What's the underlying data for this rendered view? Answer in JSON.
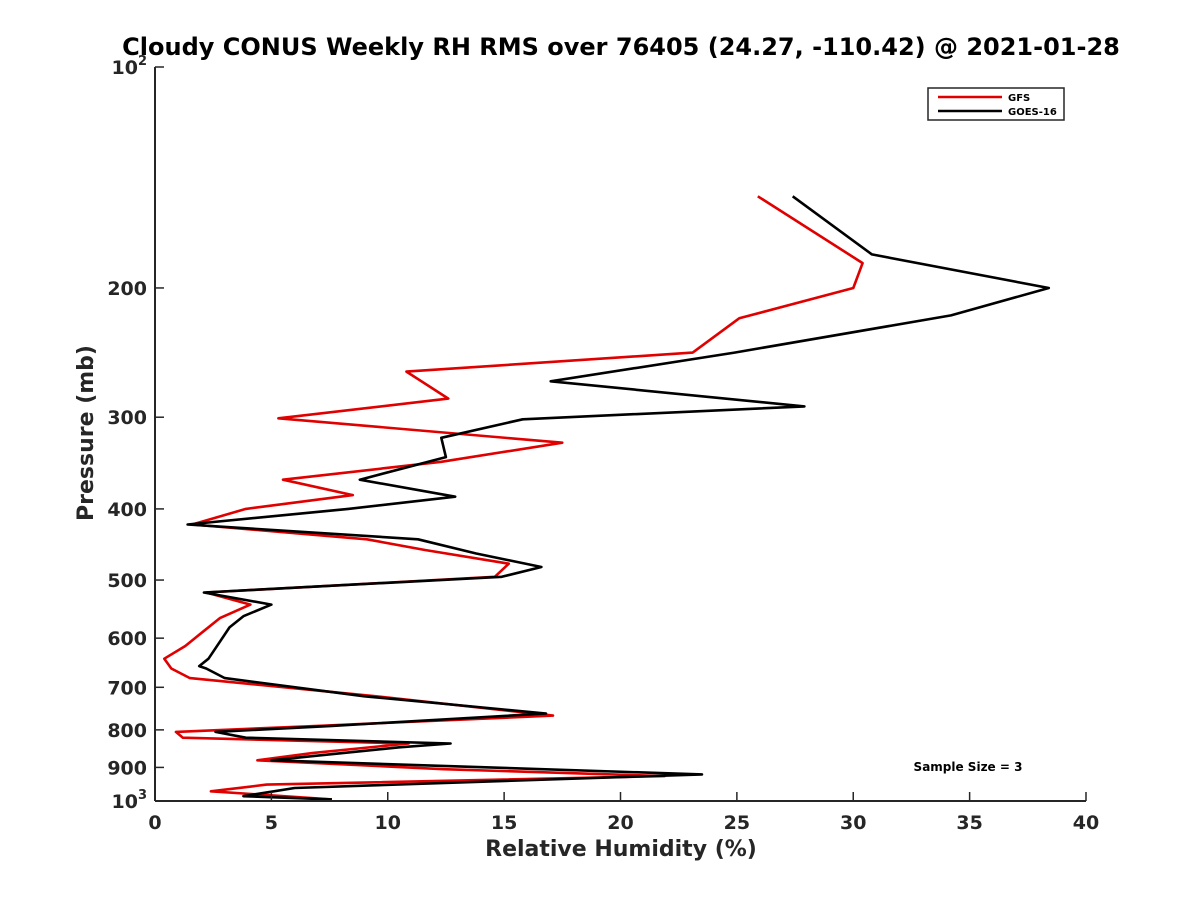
{
  "chart_data": {
    "type": "line",
    "title": "Cloudy CONUS Weekly RH RMS over 76405 (24.27, -110.42) @ 2021-01-28",
    "xlabel": "Relative Humidity (%)",
    "ylabel": "Pressure (mb)",
    "xlim": [
      0,
      40
    ],
    "ylim": [
      100,
      1000
    ],
    "y_scale": "log",
    "y_reversed": true,
    "grid": false,
    "legend_position": "top-right",
    "xticks": [
      "0",
      "5",
      "10",
      "15",
      "20",
      "25",
      "30",
      "35",
      "40"
    ],
    "yticks": [
      {
        "value": 100,
        "base": "10",
        "exp": "2"
      },
      {
        "value": 200,
        "label": "200"
      },
      {
        "value": 300,
        "label": "300"
      },
      {
        "value": 400,
        "label": "400"
      },
      {
        "value": 500,
        "label": "500"
      },
      {
        "value": 600,
        "label": "600"
      },
      {
        "value": 700,
        "label": "700"
      },
      {
        "value": 800,
        "label": "800"
      },
      {
        "value": 900,
        "label": "900"
      },
      {
        "value": 1000,
        "base": "10",
        "exp": "3"
      }
    ],
    "annotation": "Sample Size = 3",
    "series": [
      {
        "name": "GFS",
        "color": "#e00000",
        "points": [
          [
            25.9,
            150
          ],
          [
            30.4,
            185
          ],
          [
            30.0,
            200
          ],
          [
            25.1,
            220
          ],
          [
            23.1,
            245
          ],
          [
            10.8,
            260
          ],
          [
            12.6,
            283
          ],
          [
            5.3,
            301
          ],
          [
            17.5,
            325
          ],
          [
            12.3,
            345
          ],
          [
            5.5,
            365
          ],
          [
            8.5,
            383
          ],
          [
            3.9,
            400
          ],
          [
            1.6,
            420
          ],
          [
            9.1,
            440
          ],
          [
            11.6,
            455
          ],
          [
            15.2,
            475
          ],
          [
            14.6,
            495
          ],
          [
            2.2,
            520
          ],
          [
            4.1,
            540
          ],
          [
            2.8,
            563
          ],
          [
            2.0,
            590
          ],
          [
            1.3,
            615
          ],
          [
            0.4,
            640
          ],
          [
            0.7,
            660
          ],
          [
            1.5,
            680
          ],
          [
            9.5,
            720
          ],
          [
            17.1,
            765
          ],
          [
            7.0,
            790
          ],
          [
            0.9,
            805
          ],
          [
            1.2,
            820
          ],
          [
            10.9,
            835
          ],
          [
            6.8,
            860
          ],
          [
            4.4,
            880
          ],
          [
            12.4,
            905
          ],
          [
            21.9,
            925
          ],
          [
            4.8,
            950
          ],
          [
            2.4,
            970
          ],
          [
            7.6,
            995
          ]
        ]
      },
      {
        "name": "GOES-16",
        "color": "#000000",
        "points": [
          [
            27.4,
            150
          ],
          [
            30.8,
            180
          ],
          [
            38.4,
            200
          ],
          [
            34.2,
            218
          ],
          [
            24.9,
            245
          ],
          [
            17.0,
            268
          ],
          [
            27.9,
            290
          ],
          [
            15.8,
            302
          ],
          [
            12.3,
            320
          ],
          [
            12.5,
            340
          ],
          [
            8.8,
            365
          ],
          [
            12.9,
            385
          ],
          [
            8.3,
            400
          ],
          [
            1.4,
            420
          ],
          [
            11.3,
            440
          ],
          [
            13.8,
            460
          ],
          [
            16.6,
            480
          ],
          [
            14.9,
            495
          ],
          [
            2.1,
            520
          ],
          [
            5.0,
            540
          ],
          [
            3.8,
            560
          ],
          [
            3.2,
            580
          ],
          [
            2.3,
            640
          ],
          [
            1.9,
            655
          ],
          [
            2.2,
            660
          ],
          [
            3.0,
            680
          ],
          [
            9.0,
            720
          ],
          [
            16.8,
            760
          ],
          [
            7.6,
            790
          ],
          [
            2.6,
            805
          ],
          [
            3.9,
            820
          ],
          [
            12.7,
            835
          ],
          [
            10.5,
            845
          ],
          [
            5.0,
            880
          ],
          [
            23.5,
            920
          ],
          [
            6.0,
            960
          ],
          [
            3.8,
            985
          ],
          [
            7.6,
            995
          ]
        ]
      }
    ]
  }
}
